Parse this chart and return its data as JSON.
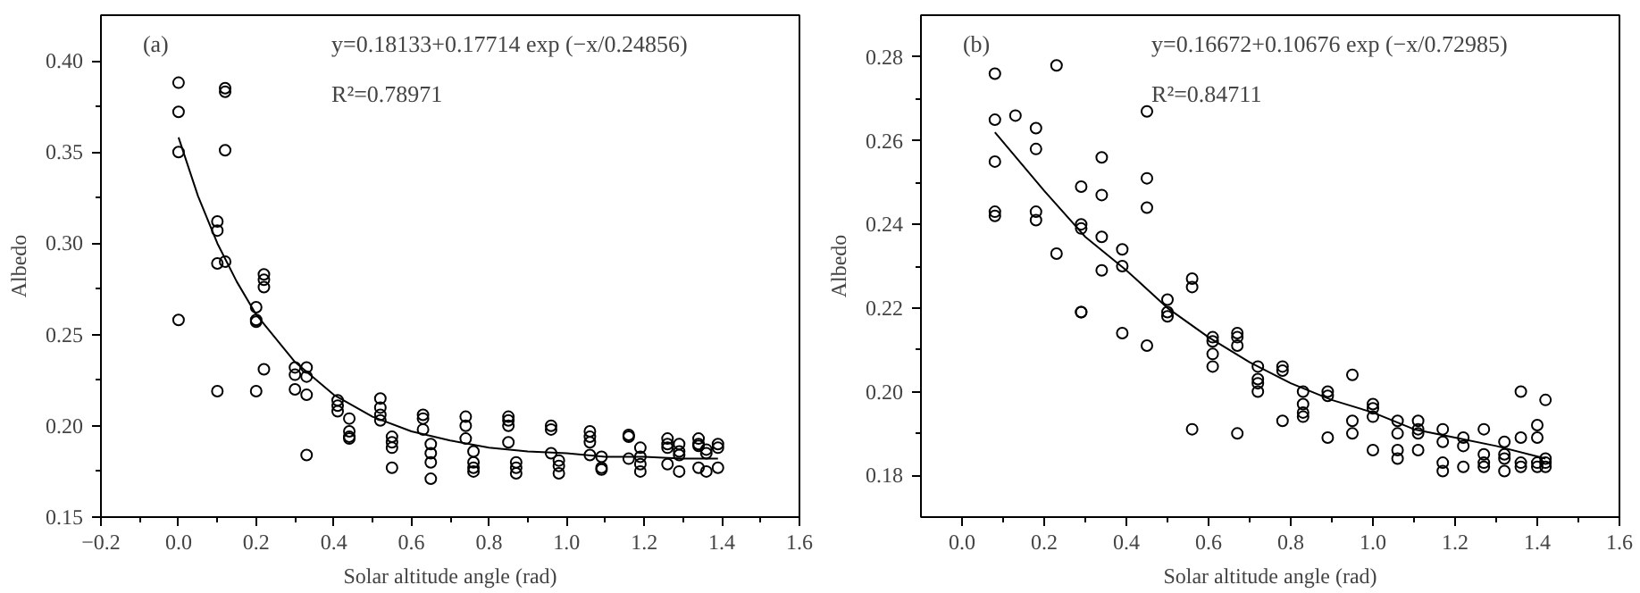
{
  "chart_data": [
    {
      "type": "scatter",
      "xlabel": "Solar altitude angle (rad)",
      "ylabel": "Albedo",
      "annotations": [
        "(a)",
        "y=0.18133+0.17714 exp (−x/0.24856)",
        "R²=0.78971"
      ],
      "grid": false,
      "xlim": [
        -0.2,
        1.6
      ],
      "ylim": [
        0.15,
        0.425
      ],
      "xticks": [
        {
          "value": -0.2,
          "label": "−0.2"
        },
        {
          "value": 0,
          "label": "0.0"
        },
        {
          "value": 0.2,
          "label": "0.2"
        },
        {
          "value": 0.4,
          "label": "0.4"
        },
        {
          "value": 0.6,
          "label": "0.6"
        },
        {
          "value": 0.8,
          "label": "0.8"
        },
        {
          "value": 1.0,
          "label": "1.0"
        },
        {
          "value": 1.2,
          "label": "1.2"
        },
        {
          "value": 1.4,
          "label": "1.4"
        },
        {
          "value": 1.6,
          "label": "1.6"
        }
      ],
      "yticks": [
        {
          "value": 0.15,
          "label": "0.15"
        },
        {
          "value": 0.2,
          "label": "0.20"
        },
        {
          "value": 0.25,
          "label": "0.25"
        },
        {
          "value": 0.3,
          "label": "0.30"
        },
        {
          "value": 0.35,
          "label": "0.35"
        },
        {
          "value": 0.4,
          "label": "0.40"
        }
      ],
      "series": [
        {
          "marker": "circle",
          "color": "#000000",
          "x": [
            0,
            0,
            0,
            0,
            0.1,
            0.1,
            0.1,
            0.1,
            0.12,
            0.12,
            0.12,
            0.12,
            0.2,
            0.2,
            0.2,
            0.2,
            0.22,
            0.22,
            0.22,
            0.22,
            0.3,
            0.3,
            0.3,
            0.33,
            0.33,
            0.33,
            0.33,
            0.41,
            0.41,
            0.41,
            0.44,
            0.44,
            0.44,
            0.44,
            0.52,
            0.52,
            0.52,
            0.52,
            0.55,
            0.55,
            0.55,
            0.55,
            0.63,
            0.63,
            0.63,
            0.65,
            0.65,
            0.65,
            0.65,
            0.74,
            0.74,
            0.74,
            0.76,
            0.76,
            0.76,
            0.76,
            0.85,
            0.85,
            0.85,
            0.85,
            0.87,
            0.87,
            0.87,
            0.96,
            0.96,
            0.96,
            0.98,
            0.98,
            0.98,
            1.06,
            1.06,
            1.06,
            1.06,
            1.09,
            1.09,
            1.09,
            1.16,
            1.16,
            1.16,
            1.19,
            1.19,
            1.19,
            1.19,
            1.26,
            1.26,
            1.26,
            1.26,
            1.29,
            1.29,
            1.29,
            1.29,
            1.34,
            1.34,
            1.34,
            1.34,
            1.36,
            1.36,
            1.36,
            1.39,
            1.39,
            1.39
          ],
          "values": [
            0.388,
            0.372,
            0.35,
            0.258,
            0.312,
            0.307,
            0.289,
            0.219,
            0.385,
            0.383,
            0.351,
            0.29,
            0.265,
            0.258,
            0.257,
            0.219,
            0.283,
            0.28,
            0.276,
            0.231,
            0.232,
            0.228,
            0.22,
            0.232,
            0.227,
            0.217,
            0.184,
            0.214,
            0.211,
            0.208,
            0.204,
            0.197,
            0.194,
            0.193,
            0.215,
            0.21,
            0.206,
            0.203,
            0.194,
            0.191,
            0.188,
            0.177,
            0.206,
            0.204,
            0.198,
            0.19,
            0.185,
            0.18,
            0.171,
            0.205,
            0.2,
            0.193,
            0.186,
            0.18,
            0.177,
            0.175,
            0.205,
            0.203,
            0.2,
            0.191,
            0.18,
            0.177,
            0.174,
            0.2,
            0.198,
            0.185,
            0.181,
            0.178,
            0.174,
            0.197,
            0.194,
            0.191,
            0.184,
            0.183,
            0.177,
            0.176,
            0.195,
            0.194,
            0.182,
            0.188,
            0.183,
            0.179,
            0.175,
            0.193,
            0.19,
            0.188,
            0.179,
            0.19,
            0.186,
            0.184,
            0.175,
            0.193,
            0.19,
            0.189,
            0.177,
            0.187,
            0.185,
            0.175,
            0.19,
            0.188,
            0.177
          ]
        },
        {
          "type": "line",
          "color": "#000000",
          "x": [
            0,
            0.05,
            0.1,
            0.15,
            0.2,
            0.3,
            0.4,
            0.5,
            0.6,
            0.7,
            0.8,
            0.9,
            1.0,
            1.1,
            1.2,
            1.3,
            1.39
          ],
          "values": [
            0.358,
            0.326,
            0.3,
            0.279,
            0.261,
            0.235,
            0.217,
            0.205,
            0.197,
            0.192,
            0.188,
            0.186,
            0.185,
            0.183,
            0.183,
            0.182,
            0.182
          ]
        }
      ]
    },
    {
      "type": "scatter",
      "xlabel": "Solar altitude angle (rad)",
      "ylabel": "Albedo",
      "annotations": [
        "(b)",
        "y=0.16672+0.10676 exp (−x/0.72985)",
        "R²=0.84711"
      ],
      "grid": false,
      "xlim": [
        -0.1,
        1.6
      ],
      "ylim": [
        0.17,
        0.29
      ],
      "xticks": [
        {
          "value": 0,
          "label": "0.0"
        },
        {
          "value": 0.2,
          "label": "0.2"
        },
        {
          "value": 0.4,
          "label": "0.4"
        },
        {
          "value": 0.6,
          "label": "0.6"
        },
        {
          "value": 0.8,
          "label": "0.8"
        },
        {
          "value": 1.0,
          "label": "1.0"
        },
        {
          "value": 1.2,
          "label": "1.2"
        },
        {
          "value": 1.4,
          "label": "1.4"
        },
        {
          "value": 1.6,
          "label": "1.6"
        }
      ],
      "yticks": [
        {
          "value": 0.18,
          "label": "0.18"
        },
        {
          "value": 0.2,
          "label": "0.20"
        },
        {
          "value": 0.22,
          "label": "0.22"
        },
        {
          "value": 0.24,
          "label": "0.24"
        },
        {
          "value": 0.26,
          "label": "0.26"
        },
        {
          "value": 0.28,
          "label": "0.28"
        }
      ],
      "series": [
        {
          "marker": "circle",
          "color": "#000000",
          "x": [
            0.08,
            0.08,
            0.08,
            0.08,
            0.08,
            0.13,
            0.18,
            0.18,
            0.18,
            0.18,
            0.23,
            0.23,
            0.29,
            0.29,
            0.29,
            0.29,
            0.29,
            0.34,
            0.34,
            0.34,
            0.34,
            0.39,
            0.39,
            0.39,
            0.45,
            0.45,
            0.45,
            0.45,
            0.5,
            0.5,
            0.5,
            0.56,
            0.56,
            0.56,
            0.61,
            0.61,
            0.61,
            0.61,
            0.67,
            0.67,
            0.67,
            0.67,
            0.72,
            0.72,
            0.72,
            0.72,
            0.78,
            0.78,
            0.78,
            0.83,
            0.83,
            0.83,
            0.83,
            0.89,
            0.89,
            0.89,
            0.95,
            0.95,
            0.95,
            1.0,
            1.0,
            1.0,
            1.0,
            1.06,
            1.06,
            1.06,
            1.06,
            1.11,
            1.11,
            1.11,
            1.11,
            1.17,
            1.17,
            1.17,
            1.17,
            1.22,
            1.22,
            1.22,
            1.27,
            1.27,
            1.27,
            1.27,
            1.32,
            1.32,
            1.32,
            1.32,
            1.36,
            1.36,
            1.36,
            1.36,
            1.4,
            1.4,
            1.4,
            1.4,
            1.42,
            1.42,
            1.42,
            1.42
          ],
          "values": [
            0.276,
            0.265,
            0.255,
            0.243,
            0.242,
            0.266,
            0.263,
            0.258,
            0.243,
            0.241,
            0.278,
            0.233,
            0.249,
            0.24,
            0.239,
            0.219,
            0.219,
            0.256,
            0.247,
            0.237,
            0.229,
            0.234,
            0.23,
            0.214,
            0.267,
            0.251,
            0.244,
            0.211,
            0.222,
            0.219,
            0.218,
            0.227,
            0.225,
            0.191,
            0.213,
            0.212,
            0.209,
            0.206,
            0.214,
            0.213,
            0.211,
            0.19,
            0.206,
            0.203,
            0.202,
            0.2,
            0.206,
            0.205,
            0.193,
            0.2,
            0.197,
            0.195,
            0.194,
            0.2,
            0.199,
            0.189,
            0.204,
            0.193,
            0.19,
            0.197,
            0.196,
            0.194,
            0.186,
            0.193,
            0.19,
            0.186,
            0.184,
            0.193,
            0.191,
            0.19,
            0.186,
            0.191,
            0.188,
            0.183,
            0.181,
            0.189,
            0.187,
            0.182,
            0.191,
            0.185,
            0.183,
            0.182,
            0.188,
            0.185,
            0.184,
            0.181,
            0.2,
            0.189,
            0.183,
            0.182,
            0.192,
            0.189,
            0.183,
            0.182,
            0.198,
            0.184,
            0.183,
            0.182
          ]
        },
        {
          "type": "line",
          "color": "#000000",
          "x": [
            0.08,
            0.2,
            0.3,
            0.4,
            0.5,
            0.6,
            0.7,
            0.8,
            0.9,
            1.0,
            1.1,
            1.2,
            1.3,
            1.42
          ],
          "values": [
            0.262,
            0.248,
            0.237,
            0.229,
            0.22,
            0.213,
            0.207,
            0.202,
            0.198,
            0.195,
            0.191,
            0.189,
            0.187,
            0.184
          ]
        }
      ]
    }
  ]
}
